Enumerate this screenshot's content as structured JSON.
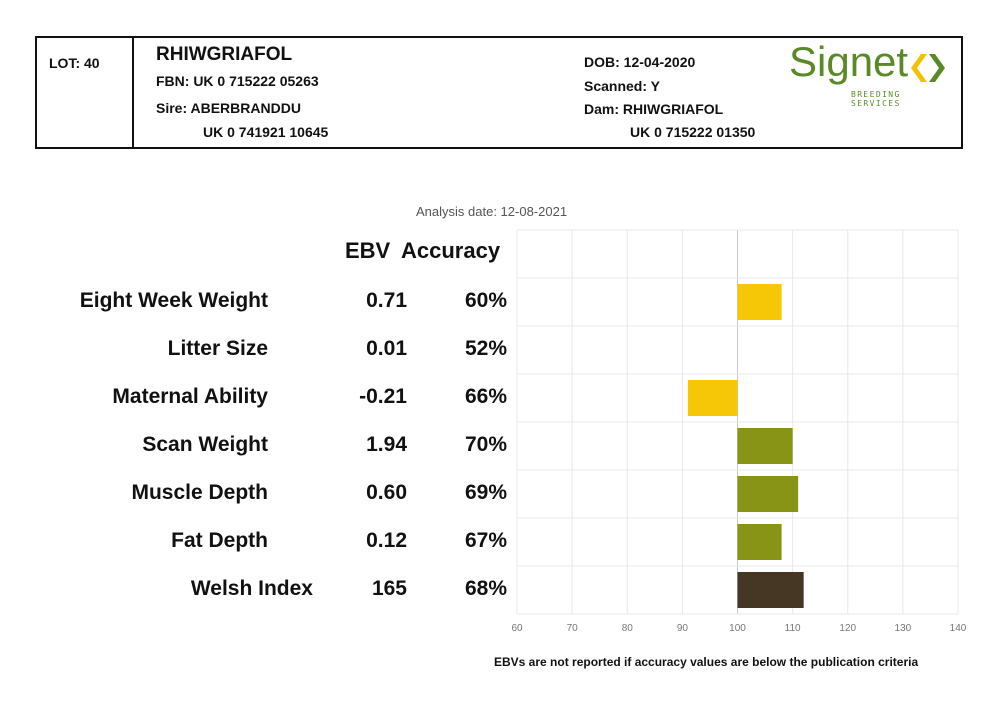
{
  "header": {
    "lot": "LOT: 40",
    "name": "RHIWGRIAFOL",
    "fbn": "FBN: UK 0 715222 05263",
    "sire_label": "Sire: ABERBRANDDU",
    "sire_id": "UK 0 741921 10645",
    "dob": "DOB: 12-04-2020",
    "scanned": "Scanned: Y",
    "dam_label": "Dam: RHIWGRIAFOL",
    "dam_id": "UK 0 715222 01350"
  },
  "logo": {
    "word": "Signet",
    "sub": "BREEDING SERVICES",
    "colors": {
      "green": "#5a8a26",
      "yellow": "#f2c200"
    }
  },
  "analysis_date": "Analysis date: 12-08-2021",
  "columns": {
    "ebv": "EBV",
    "accuracy": "Accuracy"
  },
  "footnote": "EBVs are not reported if accuracy values are below the publication criteria",
  "chart_data": {
    "type": "bar",
    "orientation": "horizontal",
    "baseline": 100,
    "xlim": [
      60,
      140
    ],
    "xticks": [
      "60",
      "70",
      "80",
      "90",
      "100",
      "110",
      "120",
      "130",
      "140"
    ],
    "grid": true,
    "rows": [
      {
        "label": "Eight Week Weight",
        "ebv": "0.71",
        "accuracy": "60%",
        "value": 108,
        "color": "#f5c707"
      },
      {
        "label": "Litter Size",
        "ebv": "0.01",
        "accuracy": "52%",
        "value": 100,
        "color": "#f5c707"
      },
      {
        "label": "Maternal Ability",
        "ebv": "-0.21",
        "accuracy": "66%",
        "value": 91,
        "color": "#f5c707"
      },
      {
        "label": "Scan Weight",
        "ebv": "1.94",
        "accuracy": "70%",
        "value": 110,
        "color": "#879415"
      },
      {
        "label": "Muscle Depth",
        "ebv": "0.60",
        "accuracy": "69%",
        "value": 111,
        "color": "#879415"
      },
      {
        "label": "Fat Depth",
        "ebv": "0.12",
        "accuracy": "67%",
        "value": 108,
        "color": "#879415"
      },
      {
        "label": "Welsh Index",
        "ebv": "165",
        "accuracy": "68%",
        "value": 112,
        "color": "#463624"
      }
    ]
  }
}
